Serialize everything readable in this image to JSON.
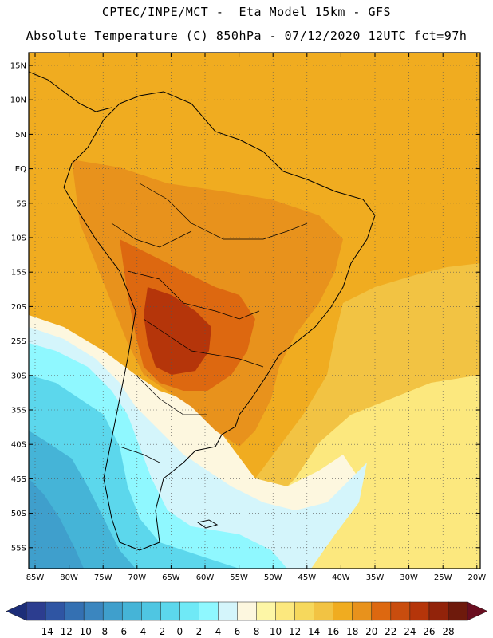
{
  "title": {
    "line1": "CPTEC/INPE/MCT -  Eta Model 15km - GFS",
    "line2": "Absolute Temperature (C) 850hPa - 07/12/2020 12UTC fct=97h"
  },
  "map": {
    "lat_labels": [
      "15N",
      "10N",
      "5N",
      "EQ",
      "5S",
      "10S",
      "15S",
      "20S",
      "25S",
      "30S",
      "35S",
      "40S",
      "45S",
      "50S",
      "55S"
    ],
    "lon_labels": [
      "85W",
      "80W",
      "75W",
      "70W",
      "65W",
      "60W",
      "55W",
      "50W",
      "45W",
      "40W",
      "35W",
      "30W",
      "25W",
      "20W"
    ]
  },
  "colorbar": {
    "labels": [
      "-14",
      "-12",
      "-10",
      "-8",
      "-6",
      "-4",
      "-2",
      "0",
      "2",
      "4",
      "6",
      "8",
      "10",
      "12",
      "14",
      "16",
      "18",
      "20",
      "22",
      "24",
      "26",
      "28"
    ],
    "colors": [
      "#2c3d8f",
      "#2f55a3",
      "#3470b2",
      "#3b86bf",
      "#3f9fcc",
      "#45b4d7",
      "#4fc6e2",
      "#5cd7ec",
      "#6fe9f6",
      "#8ff8ff",
      "#d4f5fb",
      "#fdf7df",
      "#fdf6a6",
      "#fce87e",
      "#f6d85c",
      "#f2c343",
      "#f0ac20",
      "#e8921c",
      "#dd6810",
      "#c94d0e",
      "#b5350a",
      "#92230a",
      "#6e1a0c"
    ],
    "end_left_color": "#1c2d78",
    "end_right_color": "#6a0e20"
  },
  "fill_colors": {
    "deep_warm": "#b5350a",
    "warm": "#dd6810",
    "orange": "#e8921c",
    "amber": "#f0ac20",
    "gold": "#f2c343",
    "yellow": "#fce87e",
    "pale_yellow": "#fdf6a6",
    "cream": "#fdf7df",
    "pale_cyan": "#d4f5fb",
    "cyan": "#8ff8ff",
    "sky": "#5cd7ec",
    "teal": "#45b4d7",
    "blue": "#3f9fcc"
  }
}
